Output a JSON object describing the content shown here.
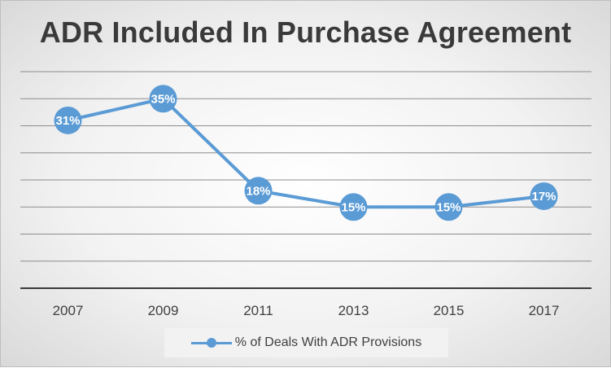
{
  "chart_data": {
    "type": "line",
    "title": "ADR Included In Purchase Agreement",
    "categories": [
      "2007",
      "2009",
      "2011",
      "2013",
      "2015",
      "2017"
    ],
    "series": [
      {
        "name": "% of Deals With ADR Provisions",
        "values": [
          31,
          35,
          18,
          15,
          15,
          17
        ],
        "data_labels": [
          "31%",
          "35%",
          "18%",
          "15%",
          "15%",
          "17%"
        ],
        "color": "#5b9bd5"
      }
    ],
    "ylim": [
      0,
      40
    ],
    "grid": true,
    "legend_position": "bottom"
  }
}
